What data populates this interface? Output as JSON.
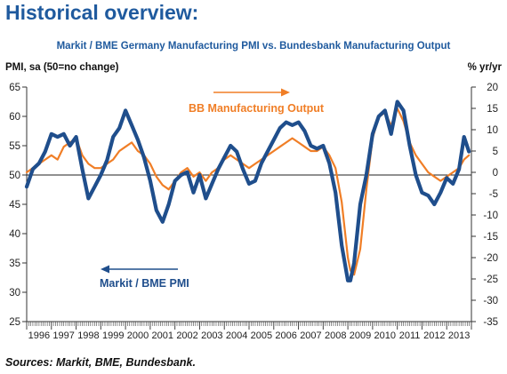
{
  "heading": "Historical overview:",
  "sources": "Sources: Markit, BME, Bundesbank.",
  "colors": {
    "pmi": "#1f4e8c",
    "output": "#f07e26",
    "title": "#1f5a9e"
  },
  "chart_data": {
    "type": "line",
    "title": "Markit / BME Germany Manufacturing PMI vs. Bundesbank Manufacturing Output",
    "ylabel_left": "PMI, sa (50=no change)",
    "ylabel_right": "% yr/yr",
    "ylim_left": [
      25,
      65
    ],
    "ylim_right": [
      -35,
      20
    ],
    "yticks_left": [
      "65",
      "60",
      "55",
      "50",
      "45",
      "40",
      "35",
      "30",
      "25"
    ],
    "yticks_right": [
      "20",
      "15",
      "10",
      "5",
      "0",
      "-5",
      "-10",
      "-15",
      "-20",
      "-25",
      "-30",
      "-35"
    ],
    "x_categories": [
      "1996",
      "1997",
      "1998",
      "1999",
      "2000",
      "2001",
      "2002",
      "2003",
      "2004",
      "2005",
      "2006",
      "2007",
      "2008",
      "2009",
      "2010",
      "2011",
      "2012",
      "2013"
    ],
    "grid": "reference line at PMI 50",
    "annotations": [
      {
        "text": "BB Manufacturing Output",
        "series": "output",
        "arrow": "right"
      },
      {
        "text": "Markit / BME PMI",
        "series": "pmi",
        "arrow": "left"
      }
    ],
    "series": [
      {
        "name": "Markit / BME PMI",
        "axis": "left",
        "x": [
          1996.0,
          1996.25,
          1996.5,
          1996.75,
          1997.0,
          1997.25,
          1997.5,
          1997.75,
          1998.0,
          1998.25,
          1998.5,
          1998.75,
          1999.0,
          1999.25,
          1999.5,
          1999.75,
          2000.0,
          2000.25,
          2000.5,
          2000.75,
          2001.0,
          2001.25,
          2001.5,
          2001.75,
          2002.0,
          2002.25,
          2002.5,
          2002.75,
          2003.0,
          2003.25,
          2003.5,
          2003.75,
          2004.0,
          2004.25,
          2004.5,
          2004.75,
          2005.0,
          2005.25,
          2005.5,
          2005.75,
          2006.0,
          2006.25,
          2006.5,
          2006.75,
          2007.0,
          2007.25,
          2007.5,
          2007.75,
          2008.0,
          2008.25,
          2008.5,
          2008.75,
          2009.0,
          2009.1,
          2009.25,
          2009.5,
          2009.75,
          2010.0,
          2010.25,
          2010.5,
          2010.75,
          2011.0,
          2011.25,
          2011.5,
          2011.75,
          2012.0,
          2012.25,
          2012.5,
          2012.75,
          2013.0,
          2013.25,
          2013.5,
          2013.7,
          2013.9
        ],
        "values": [
          48.0,
          51.0,
          52.0,
          54.0,
          57.0,
          56.5,
          57.0,
          55.0,
          56.5,
          51.0,
          46.0,
          48.0,
          50.0,
          52.5,
          56.5,
          58.0,
          61.0,
          58.5,
          56.0,
          53.0,
          49.0,
          44.0,
          42.0,
          45.0,
          49.0,
          50.0,
          50.5,
          47.0,
          50.0,
          46.0,
          48.5,
          51.0,
          53.0,
          55.0,
          54.0,
          51.0,
          48.5,
          49.0,
          52.0,
          54.0,
          56.0,
          58.0,
          59.0,
          58.5,
          59.0,
          57.5,
          55.0,
          54.5,
          55.0,
          52.0,
          47.0,
          38.0,
          32.0,
          32.0,
          35.0,
          45.0,
          50.0,
          57.0,
          60.0,
          61.0,
          57.0,
          62.5,
          61.0,
          55.0,
          50.0,
          47.0,
          46.5,
          45.0,
          47.0,
          49.5,
          48.5,
          51.0,
          56.5,
          54.0
        ]
      },
      {
        "name": "BB Manufacturing Output",
        "axis": "right",
        "x": [
          1996.0,
          1996.25,
          1996.5,
          1996.75,
          1997.0,
          1997.25,
          1997.5,
          1997.75,
          1998.0,
          1998.25,
          1998.5,
          1998.75,
          1999.0,
          1999.25,
          1999.5,
          1999.75,
          2000.0,
          2000.25,
          2000.5,
          2000.75,
          2001.0,
          2001.25,
          2001.5,
          2001.75,
          2002.0,
          2002.25,
          2002.5,
          2002.75,
          2003.0,
          2003.25,
          2003.5,
          2003.75,
          2004.0,
          2004.25,
          2004.5,
          2004.75,
          2005.0,
          2005.25,
          2005.5,
          2005.75,
          2006.0,
          2006.25,
          2006.5,
          2006.75,
          2007.0,
          2007.25,
          2007.5,
          2007.75,
          2008.0,
          2008.25,
          2008.5,
          2008.75,
          2009.0,
          2009.1,
          2009.25,
          2009.5,
          2009.75,
          2010.0,
          2010.25,
          2010.5,
          2010.75,
          2011.0,
          2011.25,
          2011.5,
          2011.75,
          2012.0,
          2012.25,
          2012.5,
          2012.75,
          2013.0,
          2013.25,
          2013.5,
          2013.7,
          2013.9
        ],
        "values": [
          0.0,
          1.0,
          2.0,
          3.0,
          4.0,
          3.0,
          6.0,
          7.0,
          8.0,
          4.0,
          2.0,
          1.0,
          1.0,
          2.0,
          3.0,
          5.0,
          6.0,
          7.0,
          5.0,
          4.0,
          2.0,
          -1.0,
          -3.0,
          -4.0,
          -2.0,
          0.0,
          1.0,
          -1.0,
          0.0,
          -2.0,
          0.0,
          1.0,
          3.0,
          4.0,
          3.0,
          2.0,
          1.0,
          2.0,
          3.0,
          4.0,
          5.0,
          6.0,
          7.0,
          8.0,
          7.0,
          6.0,
          5.0,
          5.0,
          6.0,
          4.0,
          1.0,
          -7.0,
          -20.0,
          -23.0,
          -24.0,
          -18.0,
          -4.0,
          8.0,
          13.0,
          14.0,
          11.0,
          15.0,
          12.0,
          7.0,
          4.0,
          2.0,
          0.0,
          -1.0,
          -2.0,
          -1.0,
          0.0,
          1.0,
          3.0,
          4.0
        ]
      }
    ]
  }
}
